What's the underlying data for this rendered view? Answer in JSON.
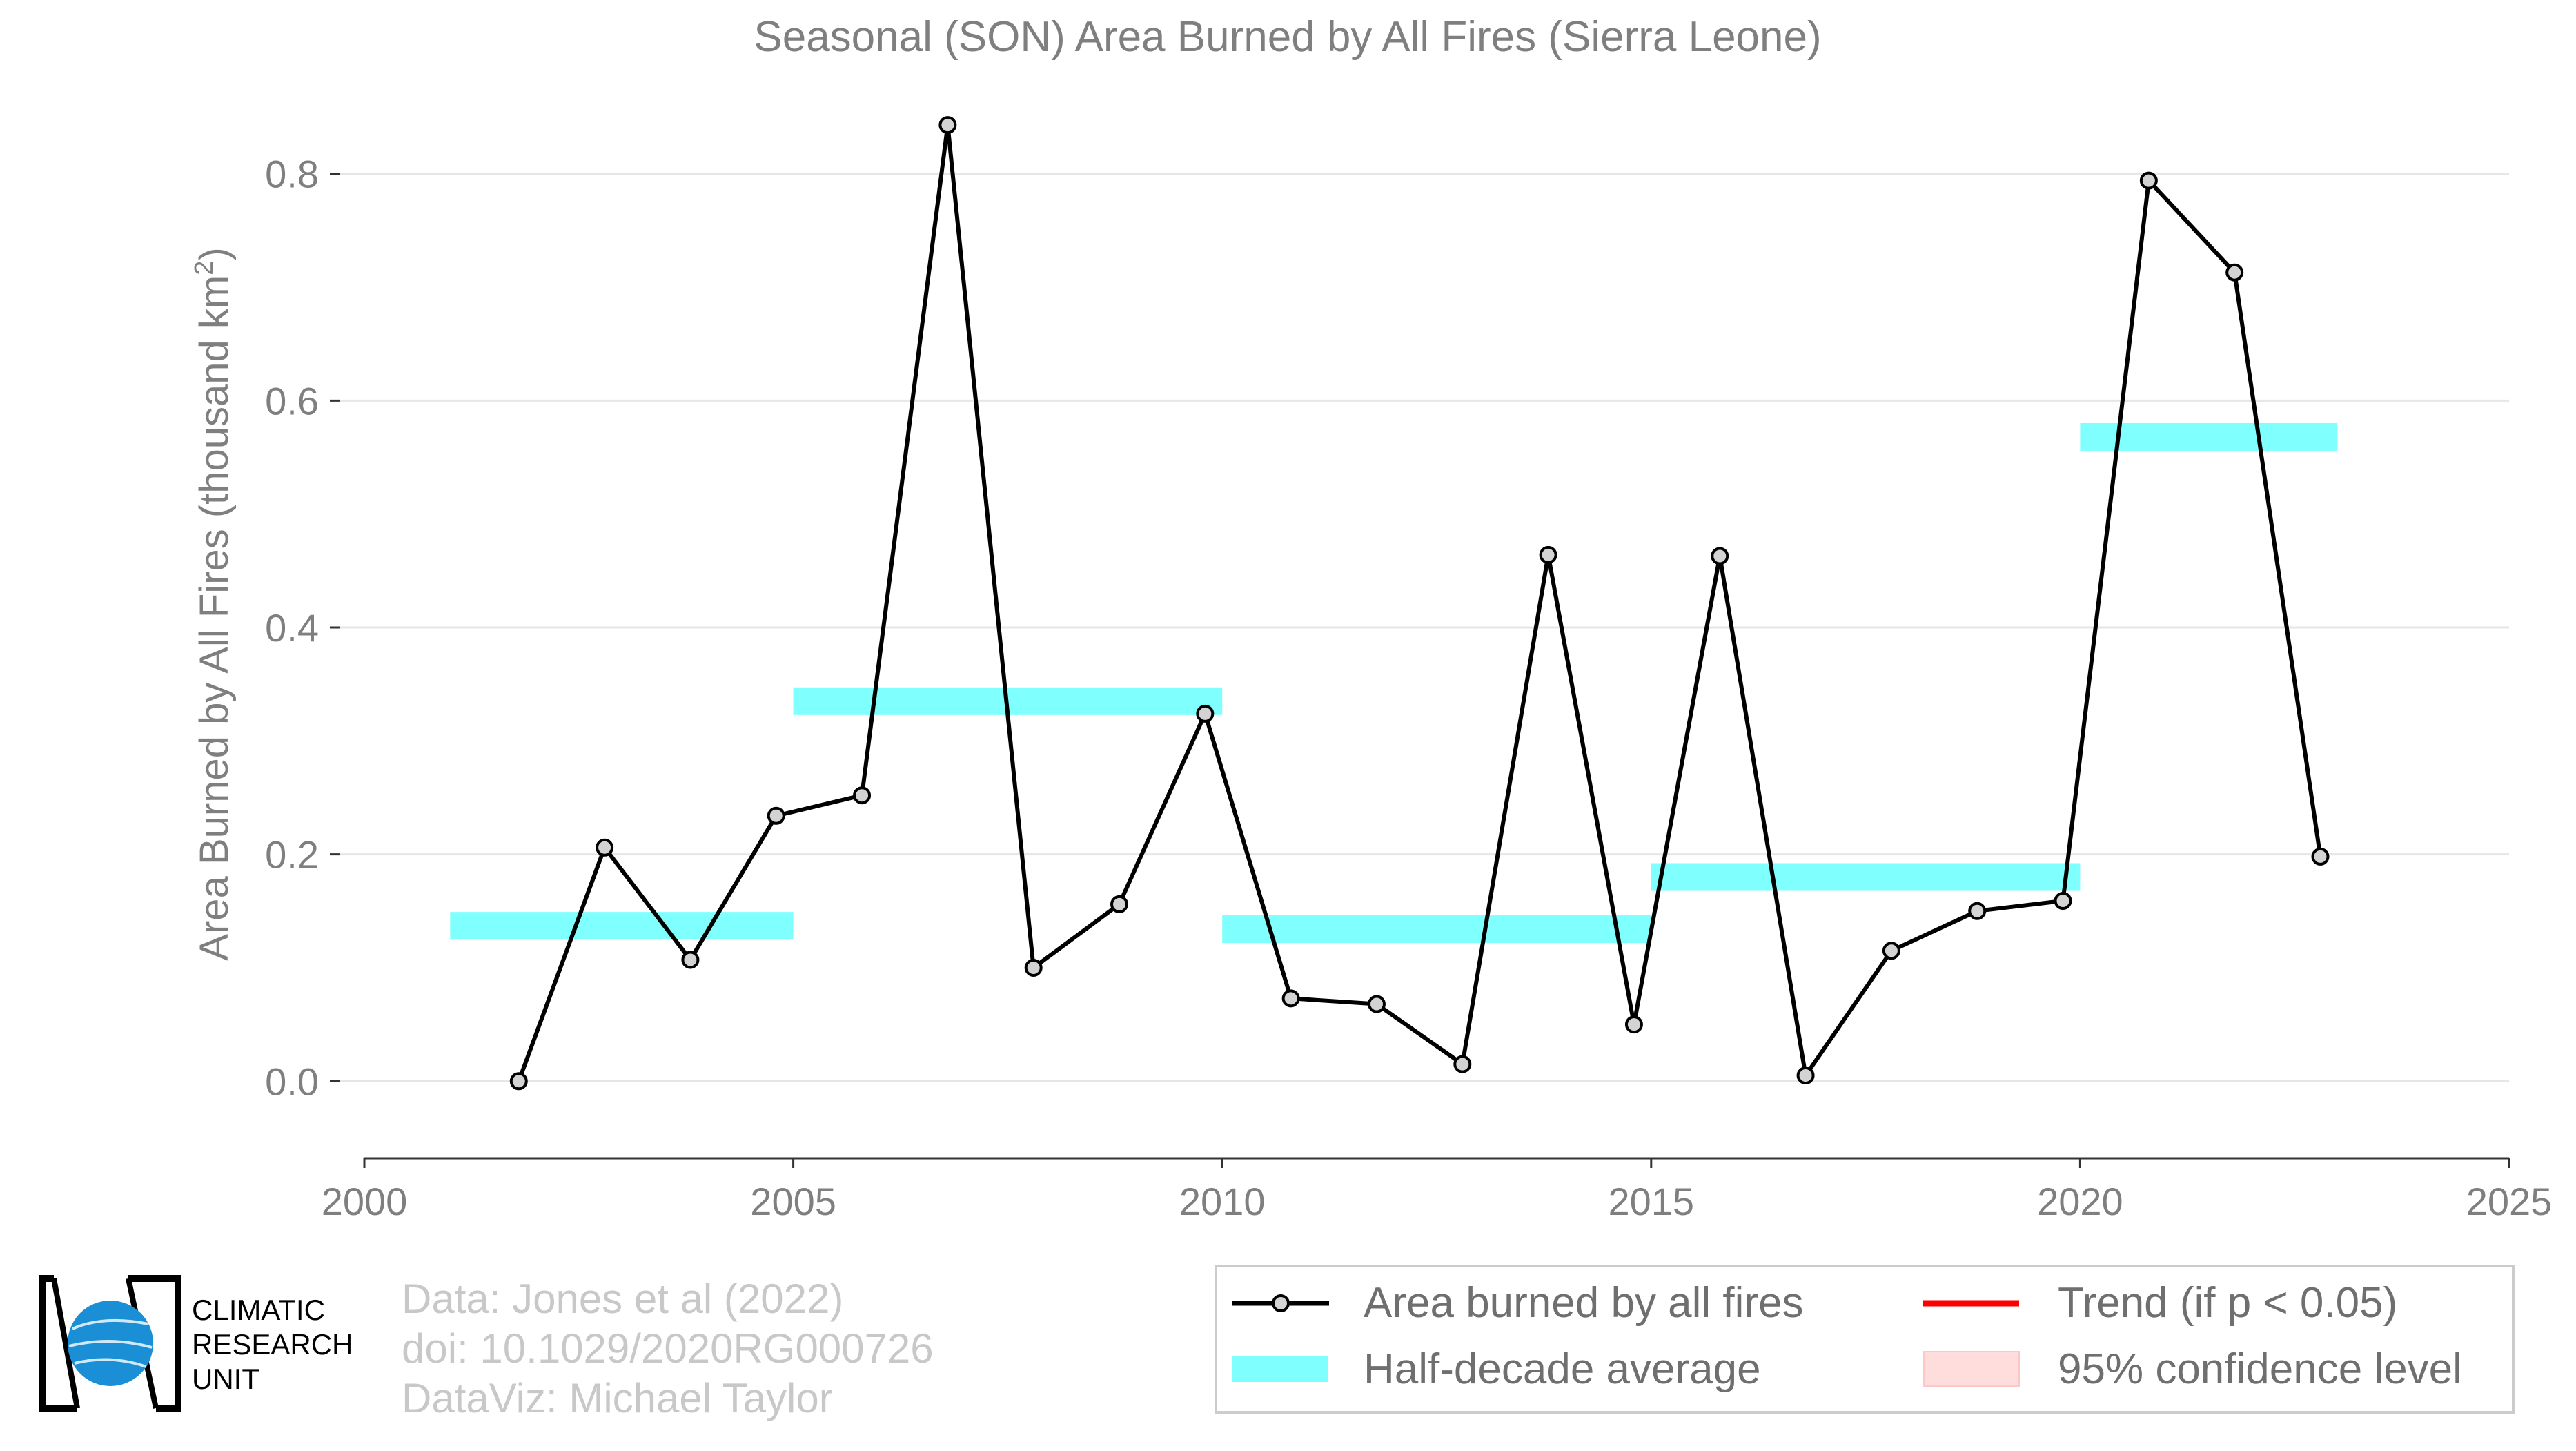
{
  "chart_data": {
    "type": "line",
    "title": "Seasonal (SON) Area Burned by All Fires (Sierra Leone)",
    "ylabel": "Area Burned by All Fires (thousand km",
    "ylabel_superscript": "2",
    "ylabel_close": ")",
    "xlabel": "",
    "xlim": [
      2000,
      2025
    ],
    "ylim": [
      -0.068,
      0.868
    ],
    "x_ticks": [
      "2000",
      "2005",
      "2010",
      "2015",
      "2020",
      "2025"
    ],
    "y_ticks": [
      "0.0",
      "0.2",
      "0.4",
      "0.6",
      "0.8"
    ],
    "grid": true,
    "legend_position": "bottom-right",
    "series": [
      {
        "name": "Area burned by all fires",
        "color": "#000000",
        "marker_color": "#d3d3d3",
        "x": [
          2001.8,
          2002.8,
          2003.8,
          2004.8,
          2005.8,
          2006.8,
          2007.8,
          2008.8,
          2009.8,
          2010.8,
          2011.8,
          2012.8,
          2013.8,
          2014.8,
          2015.8,
          2016.8,
          2017.8,
          2018.8,
          2019.8,
          2020.8,
          2021.8,
          2022.8
        ],
        "y": [
          0.0,
          0.206,
          0.107,
          0.234,
          0.252,
          0.843,
          0.1,
          0.156,
          0.324,
          0.073,
          0.068,
          0.015,
          0.464,
          0.05,
          0.463,
          0.005,
          0.115,
          0.15,
          0.159,
          0.794,
          0.713,
          0.198
        ]
      }
    ],
    "half_decade_averages": {
      "name": "Half-decade average",
      "color": "#80ffff",
      "segments": [
        {
          "x": [
            2001,
            2005
          ],
          "y": 0.137
        },
        {
          "x": [
            2005,
            2010
          ],
          "y": 0.335
        },
        {
          "x": [
            2010,
            2015
          ],
          "y": 0.134
        },
        {
          "x": [
            2015,
            2020
          ],
          "y": 0.18
        },
        {
          "x": [
            2020,
            2023
          ],
          "y": 0.568
        }
      ]
    },
    "trend": {
      "name": "Trend (if p < 0.05)",
      "color": "#ff0000",
      "shown": false
    },
    "confidence": {
      "name": "95% confidence level",
      "color": "#ffdddd",
      "shown": false
    }
  },
  "legend": {
    "items": [
      {
        "label": "Area burned by all fires"
      },
      {
        "label": "Trend (if p < 0.05)"
      },
      {
        "label": "Half-decade average"
      },
      {
        "label": "95% confidence level"
      }
    ]
  },
  "credits": {
    "line1": "Data: Jones et al (2022)",
    "line2": "doi: 10.1029/2020RG000726",
    "line3": "DataViz: Michael Taylor"
  },
  "logo": {
    "line1": "CLIMATIC",
    "line2": "RESEARCH",
    "line3": "UNIT",
    "color": "#1a8fd6"
  }
}
